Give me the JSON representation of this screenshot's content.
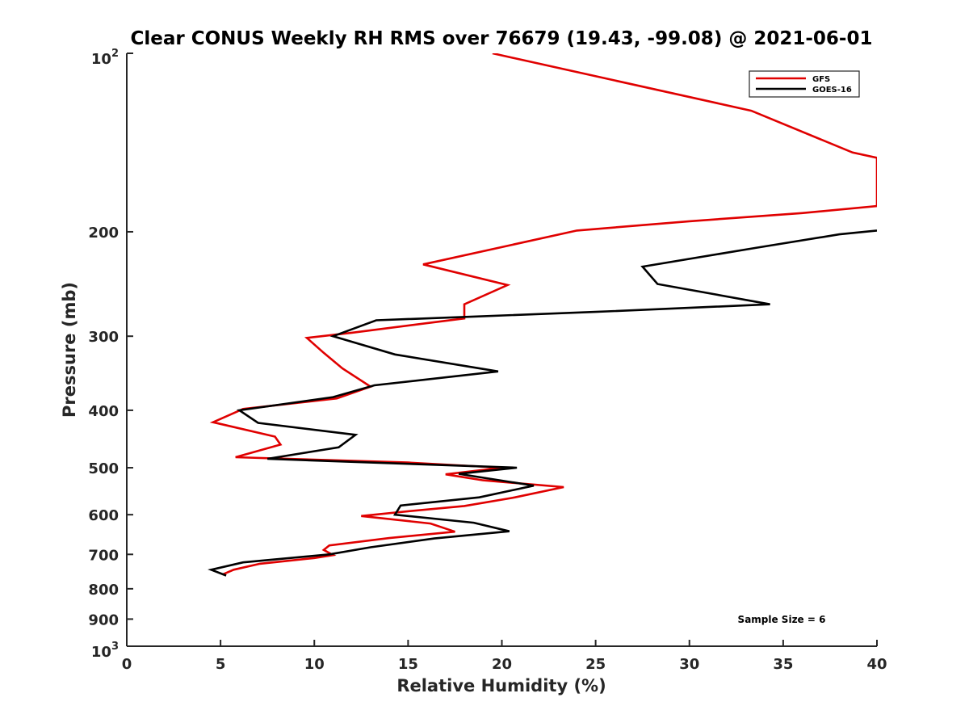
{
  "chart_data": {
    "type": "line",
    "title": "Clear CONUS Weekly RH RMS over 76679 (19.43, -99.08) @ 2021-06-01",
    "xlabel": "Relative Humidity (%)",
    "ylabel": "Pressure (mb)",
    "xlim": [
      0,
      40
    ],
    "ylim": [
      100,
      1000
    ],
    "y_scale": "log",
    "y_reversed": true,
    "x_ticks": [
      0,
      5,
      10,
      15,
      20,
      25,
      30,
      35,
      40
    ],
    "y_ticks": [
      {
        "value": 100,
        "base": "10",
        "exp": "2"
      },
      {
        "value": 200,
        "label": "200"
      },
      {
        "value": 300,
        "label": "300"
      },
      {
        "value": 400,
        "label": "400"
      },
      {
        "value": 500,
        "label": "500"
      },
      {
        "value": 600,
        "label": "600"
      },
      {
        "value": 700,
        "label": "700"
      },
      {
        "value": 800,
        "label": "800"
      },
      {
        "value": 900,
        "label": "900"
      },
      {
        "value": 1000,
        "base": "10",
        "exp": "3"
      }
    ],
    "grid": false,
    "legend_position": "top-right",
    "series": [
      {
        "name": "GFS",
        "color": "#e00000",
        "points": [
          [
            19.5,
            100
          ],
          [
            33.3,
            125
          ],
          [
            38.7,
            147
          ],
          [
            40.0,
            150
          ],
          [
            40.0,
            181
          ],
          [
            36.0,
            186
          ],
          [
            30.0,
            192
          ],
          [
            24.0,
            199
          ],
          [
            15.8,
            227
          ],
          [
            20.3,
            246
          ],
          [
            18.0,
            265
          ],
          [
            18.0,
            280
          ],
          [
            12.0,
            296
          ],
          [
            9.6,
            302
          ],
          [
            10.5,
            320
          ],
          [
            11.5,
            340
          ],
          [
            13.0,
            365
          ],
          [
            11.2,
            382
          ],
          [
            6.2,
            398
          ],
          [
            4.6,
            419
          ],
          [
            7.9,
            443
          ],
          [
            8.2,
            457
          ],
          [
            5.8,
            480
          ],
          [
            15.0,
            490
          ],
          [
            20.0,
            500
          ],
          [
            17.0,
            513
          ],
          [
            19.0,
            525
          ],
          [
            23.3,
            539
          ],
          [
            20.7,
            561
          ],
          [
            18.0,
            580
          ],
          [
            15.0,
            592
          ],
          [
            12.5,
            603
          ],
          [
            16.2,
            621
          ],
          [
            17.5,
            641
          ],
          [
            14.0,
            657
          ],
          [
            10.8,
            676
          ],
          [
            10.5,
            688
          ],
          [
            11.0,
            702
          ],
          [
            10.0,
            710
          ],
          [
            7.1,
            726
          ],
          [
            5.7,
            743
          ],
          [
            5.1,
            757
          ]
        ]
      },
      {
        "name": "GOES-16",
        "color": "#000000",
        "points": [
          [
            40.0,
            199
          ],
          [
            38.0,
            202
          ],
          [
            33.5,
            213
          ],
          [
            27.5,
            229
          ],
          [
            28.3,
            245
          ],
          [
            34.3,
            265
          ],
          [
            25.0,
            273
          ],
          [
            18.5,
            278
          ],
          [
            13.3,
            282
          ],
          [
            11.0,
            300
          ],
          [
            14.3,
            322
          ],
          [
            19.8,
            344
          ],
          [
            13.2,
            363
          ],
          [
            11.0,
            380
          ],
          [
            6.0,
            400
          ],
          [
            7.0,
            420
          ],
          [
            12.2,
            440
          ],
          [
            11.3,
            462
          ],
          [
            7.5,
            483
          ],
          [
            20.8,
            500
          ],
          [
            17.7,
            512
          ],
          [
            21.7,
            536
          ],
          [
            18.8,
            561
          ],
          [
            14.6,
            579
          ],
          [
            14.3,
            600
          ],
          [
            18.5,
            619
          ],
          [
            20.4,
            640
          ],
          [
            16.4,
            658
          ],
          [
            13.0,
            681
          ],
          [
            10.8,
            700
          ],
          [
            6.2,
            722
          ],
          [
            4.5,
            743
          ],
          [
            5.3,
            760
          ]
        ]
      }
    ],
    "annotations": [
      {
        "text": "Sample Size = 6"
      }
    ]
  }
}
